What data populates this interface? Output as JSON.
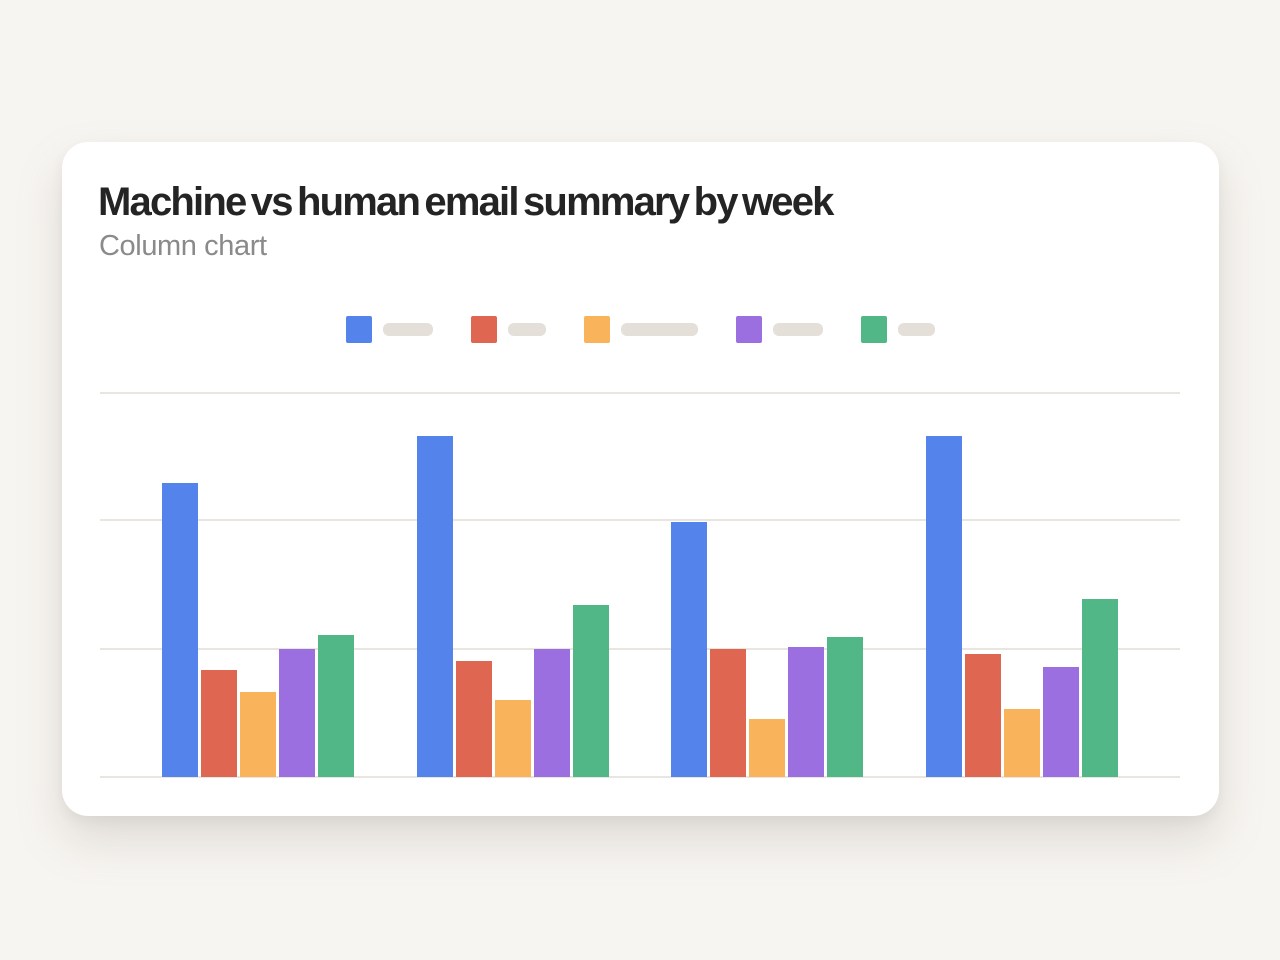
{
  "page": {
    "background_color": "#F7F5F1"
  },
  "card": {
    "background_color": "#FFFFFF",
    "title": "Machine vs human email summary by week",
    "subtitle": "Column chart",
    "title_color": "#242424",
    "subtitle_color": "#8A8A8A"
  },
  "legend": {
    "pill_color": "#E4E0D9",
    "note": "legend labels are redacted grey placeholder pills of varying width; no readable text"
  },
  "chart_data": {
    "type": "bar",
    "title": "Machine vs human email summary by week",
    "subtitle": "Column chart",
    "categories": [
      "",
      "",
      "",
      ""
    ],
    "series": [
      {
        "name": "",
        "color": "#5583EC",
        "legend_pill_width": 50,
        "values": [
          22.9,
          26.6,
          19.9,
          26.6
        ]
      },
      {
        "name": "",
        "color": "#DF6651",
        "legend_pill_width": 38,
        "values": [
          8.3,
          9.0,
          10.0,
          9.6
        ]
      },
      {
        "name": "",
        "color": "#F9B35A",
        "legend_pill_width": 77,
        "values": [
          6.6,
          6.0,
          4.5,
          5.3
        ]
      },
      {
        "name": "",
        "color": "#9B6FE0",
        "legend_pill_width": 50,
        "values": [
          10.0,
          10.0,
          10.1,
          8.6
        ]
      },
      {
        "name": "",
        "color": "#51B787",
        "legend_pill_width": 37,
        "values": [
          11.1,
          13.4,
          10.9,
          13.9
        ]
      }
    ],
    "ylim": [
      0,
      30
    ],
    "gridline_values": [
      0,
      10,
      20,
      30
    ],
    "gridline_color": "#E9E5E0",
    "xlabel": "",
    "ylabel": "",
    "axis_tick_labels_visible": false,
    "legend_position": "top-center",
    "note": "axes have no visible tick labels; values estimated in gridline units where one gridline interval = 10"
  }
}
